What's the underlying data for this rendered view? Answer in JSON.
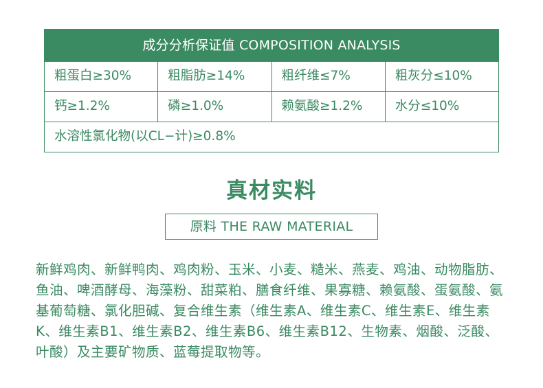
{
  "composition": {
    "header": "成分分析保证值 COMPOSITION ANALYSIS",
    "rows": [
      [
        "粗蛋白≥30%",
        "粗脂肪≥14%",
        "粗纤维≤7%",
        "粗灰分≤10%"
      ],
      [
        "钙≥1.2%",
        "磷≥1.0%",
        "赖氨酸≥1.2%",
        "水分≤10%"
      ]
    ],
    "last_row": "水溶性氯化物(以CL−计)≥0.8%"
  },
  "materials": {
    "title": "真材实料",
    "subtitle": "原料 THE RAW MATERIAL",
    "ingredients_text": "新鲜鸡肉、新鲜鸭肉、鸡肉粉、玉米、小麦、糙米、燕麦、鸡油、动物脂肪、鱼油、啤酒酵母、海藻粉、甜菜粕、膳食纤维、果寡糖、赖氨酸、蛋氨酸、氨基葡萄糖、氯化胆碱、复合维生素（维生素A、维生素C、维生素E、维生素K、维生素B1、维生素B2、维生素B6、维生素B12、生物素、烟酸、泛酸、叶酸）及主要矿物质、蓝莓提取物等。"
  },
  "colors": {
    "accent": "#3a8a62",
    "background": "#ffffff"
  }
}
